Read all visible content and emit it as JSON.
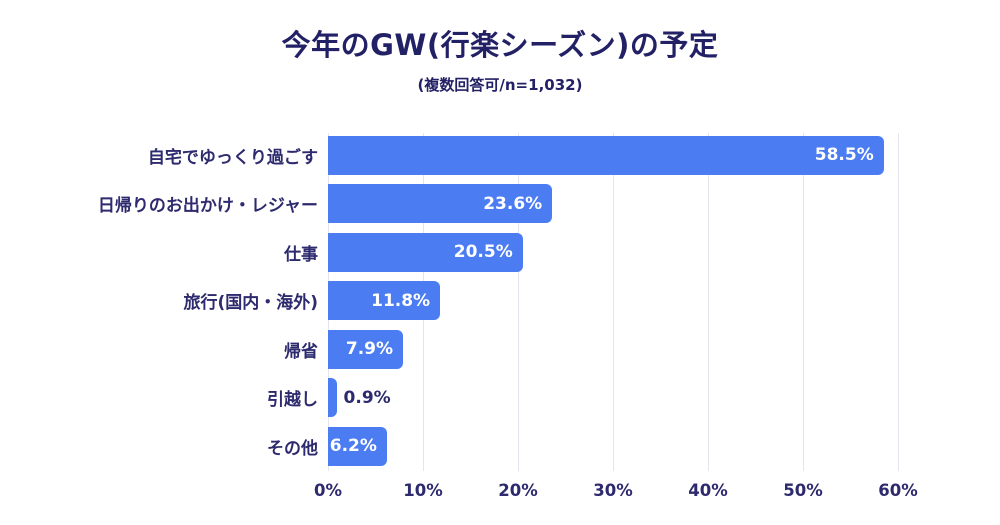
{
  "header": {
    "title": "今年のGW(行楽シーズン)の予定",
    "subtitle": "(複数回答可/n=1,032)"
  },
  "chart_data": {
    "type": "bar",
    "orientation": "horizontal",
    "title": "今年のGW(行楽シーズン)の予定",
    "subtitle": "(複数回答可/n=1,032)",
    "categories": [
      "自宅でゆっくり過ごす",
      "日帰りのお出かけ・レジャー",
      "仕事",
      "旅行(国内・海外)",
      "帰省",
      "引越し",
      "その他"
    ],
    "values": [
      58.5,
      23.6,
      20.5,
      11.8,
      7.9,
      0.9,
      6.2
    ],
    "value_labels": [
      "58.5%",
      "23.6%",
      "20.5%",
      "11.8%",
      "7.9%",
      "0.9%",
      "6.2%"
    ],
    "xlabel": "",
    "ylabel": "",
    "xlim": [
      0,
      60
    ],
    "x_tick_values": [
      0,
      10,
      20,
      30,
      40,
      50,
      60
    ],
    "x_tick_labels": [
      "0%",
      "10%",
      "20%",
      "30%",
      "40%",
      "50%",
      "60%"
    ],
    "grid": true,
    "legend": false,
    "colors": {
      "bar": "#4b7cf2",
      "label_text": "#2d2a6e",
      "title_text": "#232166",
      "value_inside": "#ffffff",
      "value_outside": "#2d2a6e",
      "gridline": "#e4e4ec",
      "background": "#ffffff"
    },
    "inside_label_min_value": 3
  }
}
